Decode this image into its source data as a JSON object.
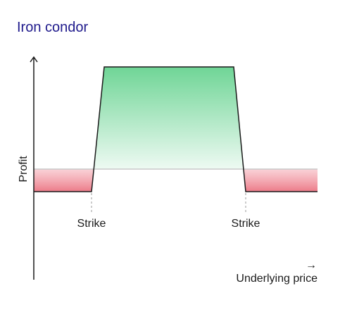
{
  "title": "Iron condor",
  "y_axis_label": "Profit",
  "x_axis_label": "Underlying price",
  "x_axis_arrow": "→",
  "strike_labels": [
    "Strike",
    "Strike"
  ],
  "colors": {
    "title": "#1f1a8c",
    "profit_fill": "#6fd596",
    "loss_fill": "#ef8a97",
    "line": "#1a1a1a",
    "breakeven_line": "#c8c8c8",
    "strike_dash": "#9a9a9a"
  }
}
